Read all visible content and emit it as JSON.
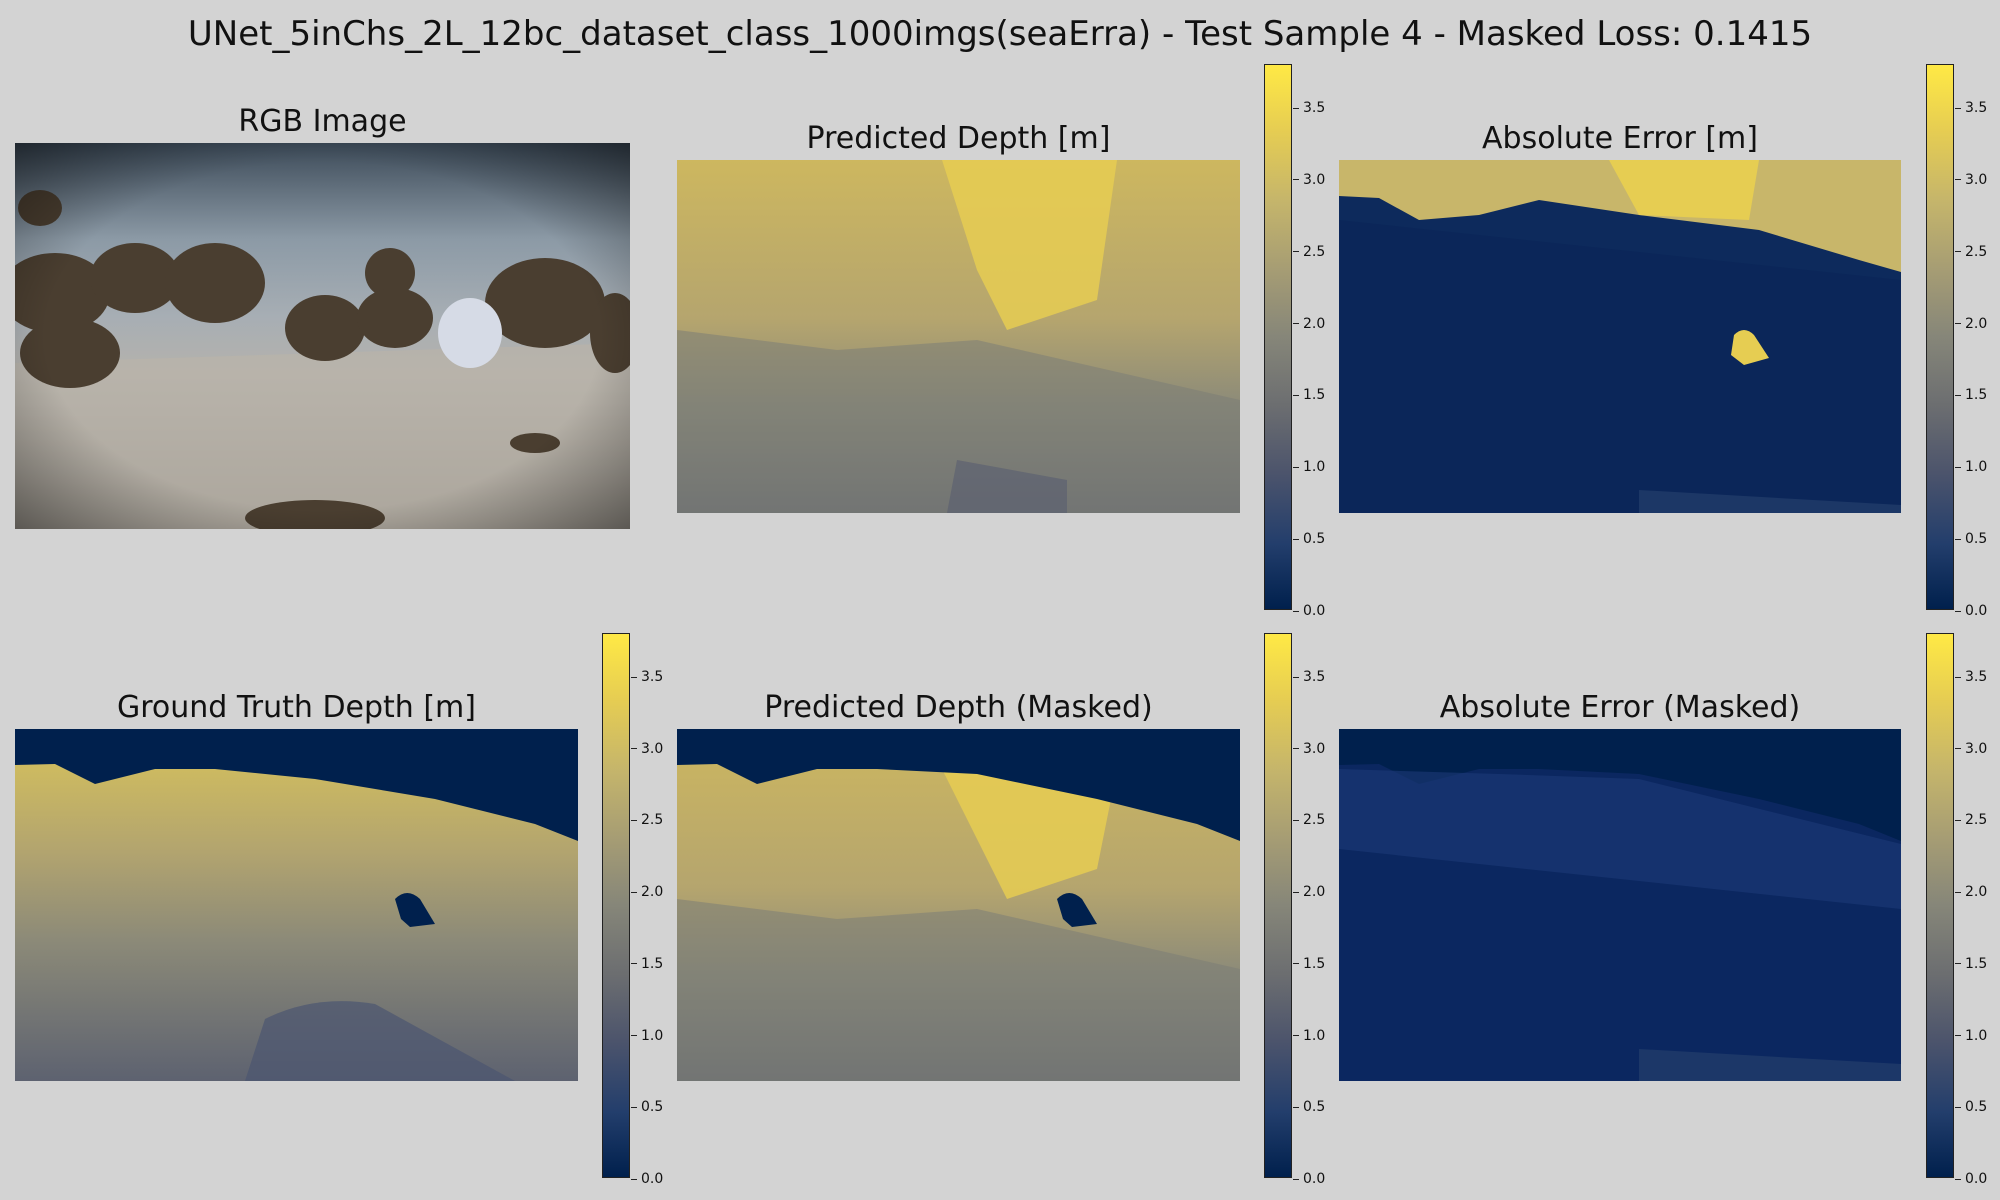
{
  "title": "UNet_5inChs_2L_12bc_dataset_class_1000imgs(seaErra) - Test Sample 4 - Masked Loss: 0.1415",
  "panels": {
    "rgb": "RGB Image",
    "pred": "Predicted Depth [m]",
    "err": "Absolute Error [m]",
    "gt": "Ground Truth Depth [m]",
    "pred_masked": "Predicted Depth (Masked)",
    "err_masked": "Absolute Error (Masked)"
  },
  "colorbar_ticks": [
    "0.0",
    "0.5",
    "1.0",
    "1.5",
    "2.0",
    "2.5",
    "3.0",
    "3.5"
  ],
  "colormap": "cividis",
  "colors": {
    "background": "#d3d3d3",
    "cmap_low": "#00204d",
    "cmap_high": "#ffe945"
  }
}
